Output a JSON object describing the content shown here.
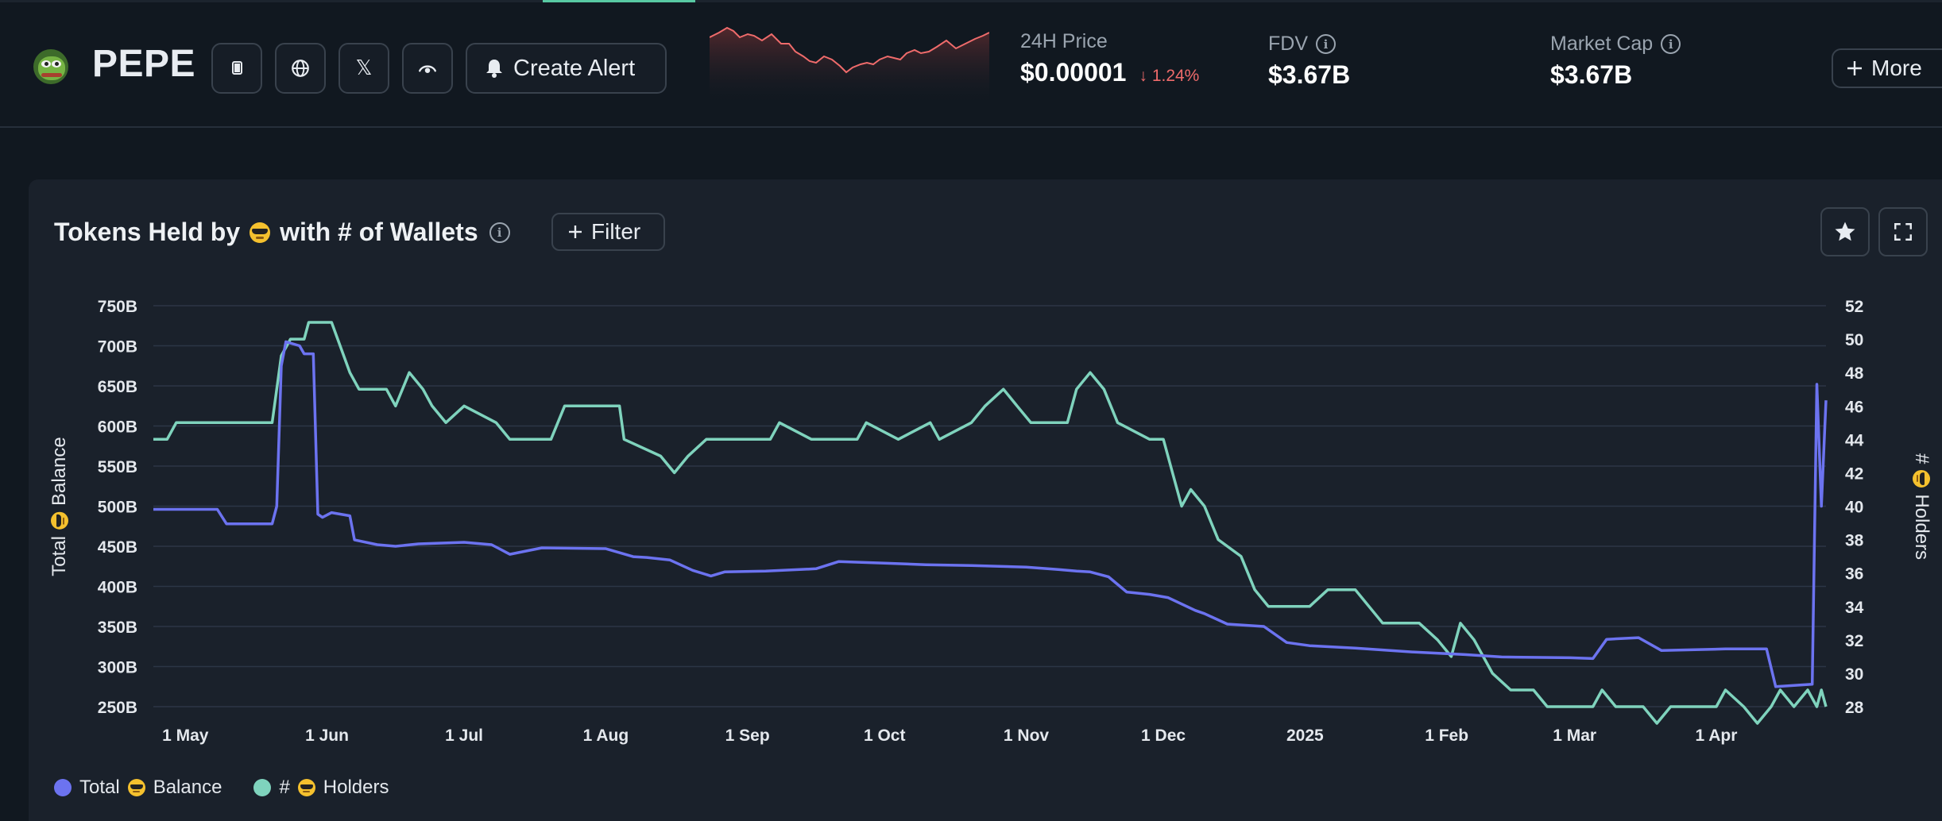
{
  "token": {
    "name": "PEPE"
  },
  "header": {
    "create_alert_label": "Create Alert",
    "price_label": "24H Price",
    "price_value": "$0.00001",
    "price_change": "1.24%",
    "fdv_label": "FDV",
    "fdv_value": "$3.67B",
    "mcap_label": "Market Cap",
    "mcap_value": "$3.67B",
    "more_label": "More",
    "x_glyph": "𝕏"
  },
  "colors": {
    "balance": "#6c73f0",
    "holders": "#7fd3bd",
    "negative": "#ef6b6b",
    "accent_tab": "#58c9a3"
  },
  "panel": {
    "title_left": "Tokens Held by",
    "title_right": "with # of Wallets",
    "filter_label": "Filter",
    "y_left_title_a": "Total",
    "y_left_title_b": "Balance",
    "y_right_title_a": "#",
    "y_right_title_b": "Holders"
  },
  "legend": [
    {
      "label_a": "Total",
      "label_b": "Balance"
    },
    {
      "label_a": "#",
      "label_b": "Holders"
    }
  ],
  "chart_data": {
    "type": "line",
    "title": "Tokens Held by 😎 with # of Wallets",
    "x_ticks": [
      "1 May",
      "1 Jun",
      "1 Jul",
      "1 Aug",
      "1 Sep",
      "1 Oct",
      "1 Nov",
      "1 Dec",
      "2025",
      "1 Feb",
      "1 Mar",
      "1 Apr"
    ],
    "x_range": [
      "2024-04-24",
      "2025-04-25"
    ],
    "y_left": {
      "label": "Total 😎 Balance",
      "ticks": [
        "250B",
        "300B",
        "350B",
        "400B",
        "450B",
        "500B",
        "550B",
        "600B",
        "650B",
        "700B",
        "750B"
      ],
      "range": [
        250,
        750
      ],
      "unit": "B"
    },
    "y_right": {
      "label": "# 😎 Holders",
      "ticks": [
        28,
        30,
        32,
        34,
        36,
        38,
        40,
        42,
        44,
        46,
        48,
        50,
        52
      ],
      "range": [
        28,
        52
      ]
    },
    "grid": true,
    "legend_position": "bottom-left",
    "series": [
      {
        "name": "Total 😎 Balance",
        "axis": "left",
        "points": [
          [
            "2024-04-24",
            496
          ],
          [
            "2024-05-08",
            496
          ],
          [
            "2024-05-10",
            478
          ],
          [
            "2024-05-20",
            478
          ],
          [
            "2024-05-21",
            500
          ],
          [
            "2024-05-22",
            675
          ],
          [
            "2024-05-23",
            705
          ],
          [
            "2024-05-26",
            700
          ],
          [
            "2024-05-27",
            690
          ],
          [
            "2024-05-29",
            690
          ],
          [
            "2024-05-30",
            490
          ],
          [
            "2024-05-31",
            486
          ],
          [
            "2024-06-02",
            492
          ],
          [
            "2024-06-06",
            488
          ],
          [
            "2024-06-07",
            458
          ],
          [
            "2024-06-12",
            452
          ],
          [
            "2024-06-16",
            450
          ],
          [
            "2024-06-21",
            453
          ],
          [
            "2024-07-01",
            455
          ],
          [
            "2024-07-07",
            452
          ],
          [
            "2024-07-09",
            446
          ],
          [
            "2024-07-11",
            440
          ],
          [
            "2024-07-18",
            448
          ],
          [
            "2024-08-01",
            447
          ],
          [
            "2024-08-07",
            437
          ],
          [
            "2024-08-10",
            436
          ],
          [
            "2024-08-15",
            433
          ],
          [
            "2024-08-20",
            420
          ],
          [
            "2024-08-24",
            413
          ],
          [
            "2024-08-27",
            418
          ],
          [
            "2024-09-05",
            419
          ],
          [
            "2024-09-16",
            422
          ],
          [
            "2024-09-21",
            431
          ],
          [
            "2024-10-01",
            429
          ],
          [
            "2024-10-10",
            427
          ],
          [
            "2024-10-20",
            426
          ],
          [
            "2024-11-01",
            424
          ],
          [
            "2024-11-08",
            421
          ],
          [
            "2024-11-12",
            419
          ],
          [
            "2024-11-15",
            418
          ],
          [
            "2024-11-19",
            412
          ],
          [
            "2024-11-23",
            393
          ],
          [
            "2024-11-28",
            390
          ],
          [
            "2024-12-02",
            386
          ],
          [
            "2024-12-08",
            370
          ],
          [
            "2024-12-10",
            366
          ],
          [
            "2024-12-15",
            353
          ],
          [
            "2024-12-23",
            350
          ],
          [
            "2024-12-28",
            330
          ],
          [
            "2025-01-02",
            326
          ],
          [
            "2025-01-12",
            323
          ],
          [
            "2025-01-25",
            318
          ],
          [
            "2025-02-05",
            315
          ],
          [
            "2025-02-13",
            312
          ],
          [
            "2025-02-28",
            311
          ],
          [
            "2025-03-05",
            310
          ],
          [
            "2025-03-08",
            334
          ],
          [
            "2025-03-15",
            336
          ],
          [
            "2025-03-20",
            320
          ],
          [
            "2025-04-03",
            322
          ],
          [
            "2025-04-12",
            322
          ],
          [
            "2025-04-14",
            275
          ],
          [
            "2025-04-22",
            278
          ],
          [
            "2025-04-23",
            652
          ],
          [
            "2025-04-24",
            500
          ],
          [
            "2025-04-25",
            632
          ]
        ]
      },
      {
        "name": "# 😎 Holders",
        "axis": "right",
        "points": [
          [
            "2024-04-24",
            44
          ],
          [
            "2024-04-27",
            44
          ],
          [
            "2024-04-29",
            45
          ],
          [
            "2024-05-20",
            45
          ],
          [
            "2024-05-22",
            49
          ],
          [
            "2024-05-24",
            50
          ],
          [
            "2024-05-27",
            50
          ],
          [
            "2024-05-28",
            51
          ],
          [
            "2024-06-02",
            51
          ],
          [
            "2024-06-06",
            48
          ],
          [
            "2024-06-08",
            47
          ],
          [
            "2024-06-14",
            47
          ],
          [
            "2024-06-16",
            46
          ],
          [
            "2024-06-19",
            48
          ],
          [
            "2024-06-22",
            47
          ],
          [
            "2024-06-24",
            46
          ],
          [
            "2024-06-27",
            45
          ],
          [
            "2024-07-01",
            46
          ],
          [
            "2024-07-08",
            45
          ],
          [
            "2024-07-11",
            44
          ],
          [
            "2024-07-20",
            44
          ],
          [
            "2024-07-23",
            46
          ],
          [
            "2024-08-04",
            46
          ],
          [
            "2024-08-05",
            44
          ],
          [
            "2024-08-13",
            43
          ],
          [
            "2024-08-16",
            42
          ],
          [
            "2024-08-19",
            43
          ],
          [
            "2024-08-23",
            44
          ],
          [
            "2024-09-06",
            44
          ],
          [
            "2024-09-08",
            45
          ],
          [
            "2024-09-15",
            44
          ],
          [
            "2024-09-25",
            44
          ],
          [
            "2024-09-27",
            45
          ],
          [
            "2024-10-04",
            44
          ],
          [
            "2024-10-11",
            45
          ],
          [
            "2024-10-13",
            44
          ],
          [
            "2024-10-20",
            45
          ],
          [
            "2024-10-23",
            46
          ],
          [
            "2024-10-27",
            47
          ],
          [
            "2024-10-30",
            46
          ],
          [
            "2024-11-02",
            45
          ],
          [
            "2024-11-10",
            45
          ],
          [
            "2024-11-12",
            47
          ],
          [
            "2024-11-15",
            48
          ],
          [
            "2024-11-18",
            47
          ],
          [
            "2024-11-21",
            45
          ],
          [
            "2024-11-28",
            44
          ],
          [
            "2024-12-01",
            44
          ],
          [
            "2024-12-03",
            42
          ],
          [
            "2024-12-05",
            40
          ],
          [
            "2024-12-07",
            41
          ],
          [
            "2024-12-10",
            40
          ],
          [
            "2024-12-13",
            38
          ],
          [
            "2024-12-18",
            37
          ],
          [
            "2024-12-21",
            35
          ],
          [
            "2024-12-24",
            34
          ],
          [
            "2025-01-02",
            34
          ],
          [
            "2025-01-06",
            35
          ],
          [
            "2025-01-12",
            35
          ],
          [
            "2025-01-15",
            34
          ],
          [
            "2025-01-18",
            33
          ],
          [
            "2025-01-26",
            33
          ],
          [
            "2025-01-30",
            32
          ],
          [
            "2025-02-02",
            31
          ],
          [
            "2025-02-04",
            33
          ],
          [
            "2025-02-07",
            32
          ],
          [
            "2025-02-11",
            30
          ],
          [
            "2025-02-15",
            29
          ],
          [
            "2025-02-20",
            29
          ],
          [
            "2025-02-23",
            28
          ],
          [
            "2025-03-05",
            28
          ],
          [
            "2025-03-07",
            29
          ],
          [
            "2025-03-10",
            28
          ],
          [
            "2025-03-16",
            28
          ],
          [
            "2025-03-19",
            27
          ],
          [
            "2025-03-22",
            28
          ],
          [
            "2025-04-01",
            28
          ],
          [
            "2025-04-03",
            29
          ],
          [
            "2025-04-07",
            28
          ],
          [
            "2025-04-10",
            27
          ],
          [
            "2025-04-13",
            28
          ],
          [
            "2025-04-15",
            29
          ],
          [
            "2025-04-18",
            28
          ],
          [
            "2025-04-21",
            29
          ],
          [
            "2025-04-23",
            28
          ],
          [
            "2025-04-24",
            29
          ],
          [
            "2025-04-25",
            28
          ]
        ]
      }
    ]
  }
}
